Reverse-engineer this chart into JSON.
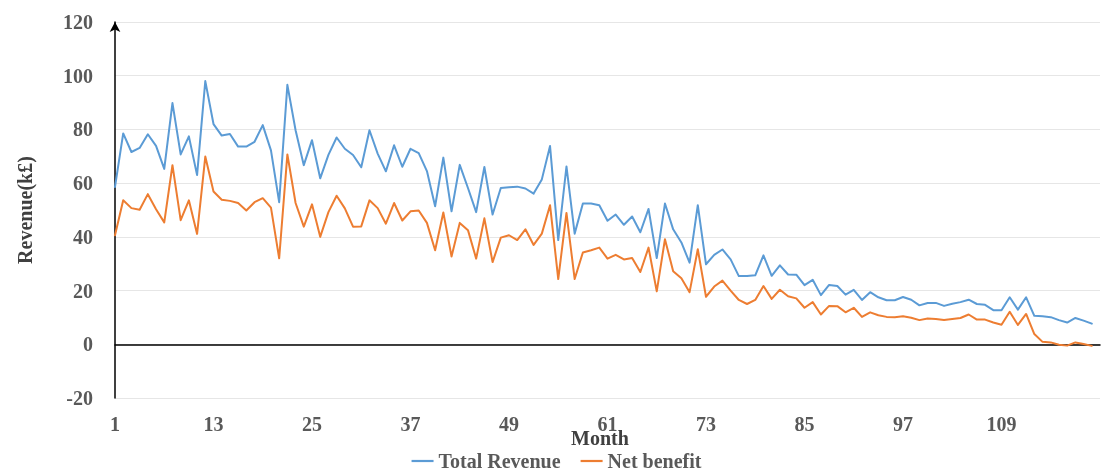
{
  "chart_data": {
    "type": "line",
    "xlabel": "Month",
    "ylabel": "Revenue(k£)",
    "x": [
      1,
      2,
      3,
      4,
      5,
      6,
      7,
      8,
      9,
      10,
      11,
      12,
      13,
      14,
      15,
      16,
      17,
      18,
      19,
      20,
      21,
      22,
      23,
      24,
      25,
      26,
      27,
      28,
      29,
      30,
      31,
      32,
      33,
      34,
      35,
      36,
      37,
      38,
      39,
      40,
      41,
      42,
      43,
      44,
      45,
      46,
      47,
      48,
      49,
      50,
      51,
      52,
      53,
      54,
      55,
      56,
      57,
      58,
      59,
      60,
      61,
      62,
      63,
      64,
      65,
      66,
      67,
      68,
      69,
      70,
      71,
      72,
      73,
      74,
      75,
      76,
      77,
      78,
      79,
      80,
      81,
      82,
      83,
      84,
      85,
      86,
      87,
      88,
      89,
      90,
      91,
      92,
      93,
      94,
      95,
      96,
      97,
      98,
      99,
      100,
      101,
      102,
      103,
      104,
      105,
      106,
      107,
      108,
      109,
      110,
      111,
      112,
      113,
      114,
      115,
      116,
      117,
      118,
      119,
      120
    ],
    "xlim": [
      1,
      121
    ],
    "xticks": [
      1,
      13,
      25,
      37,
      49,
      61,
      73,
      85,
      97,
      109
    ],
    "ylim": [
      -20,
      120
    ],
    "yticks": [
      -20,
      0,
      20,
      40,
      60,
      80,
      100,
      120
    ],
    "grid": "y",
    "legend": "bottom",
    "marker": "none",
    "line_style": "solid",
    "series": [
      {
        "name": "Total Revenue",
        "color": "#5b9bd5",
        "values": [
          58.6,
          78.5,
          71.6,
          73.1,
          78.2,
          73.9,
          65.3,
          89.8,
          70.7,
          77.4,
          63.0,
          98.0,
          82.0,
          77.7,
          78.3,
          73.6,
          73.6,
          75.4,
          81.6,
          72.2,
          52.9,
          96.6,
          79.7,
          66.7,
          76.0,
          61.8,
          70.5,
          77.0,
          72.8,
          70.5,
          65.9,
          79.7,
          71.0,
          64.4,
          74.1,
          66.1,
          72.8,
          71.2,
          64.5,
          51.4,
          69.5,
          49.5,
          66.8,
          58.2,
          49.2,
          66.0,
          48.3,
          58.2,
          58.5,
          58.7,
          58.0,
          56.1,
          61.4,
          73.8,
          38.8,
          66.2,
          41.2,
          52.4,
          52.4,
          51.8,
          46.0,
          48.3,
          44.5,
          47.6,
          41.7,
          50.4,
          32.1,
          52.4,
          42.8,
          37.9,
          30.4,
          51.8,
          29.8,
          33.3,
          35.3,
          31.6,
          25.4,
          25.4,
          25.7,
          33.1,
          25.5,
          29.4,
          26.0,
          25.9,
          22.0,
          24.0,
          18.3,
          22.1,
          21.7,
          18.5,
          20.3,
          16.5,
          19.4,
          17.5,
          16.4,
          16.4,
          17.6,
          16.6,
          14.5,
          15.4,
          15.4,
          14.3,
          15.1,
          15.7,
          16.6,
          15.0,
          14.7,
          12.7,
          12.7,
          17.5,
          12.9,
          17.5,
          10.6,
          10.4,
          10.1,
          9.0,
          8.1,
          9.8,
          8.8,
          7.7
        ]
      },
      {
        "name": "Net benefit",
        "color": "#ed7d31",
        "values": [
          40.6,
          53.6,
          50.7,
          50.1,
          55.9,
          50.3,
          45.4,
          66.7,
          46.2,
          53.6,
          41.1,
          69.9,
          56.9,
          53.8,
          53.4,
          52.6,
          49.8,
          52.9,
          54.4,
          50.9,
          32.0,
          70.7,
          52.6,
          43.8,
          52.1,
          40.0,
          49.2,
          55.3,
          50.6,
          43.8,
          43.9,
          53.6,
          50.7,
          44.9,
          52.6,
          46.1,
          49.5,
          49.8,
          45.2,
          35.0,
          49.1,
          32.7,
          45.2,
          42.5,
          31.9,
          46.9,
          30.6,
          39.7,
          40.6,
          38.8,
          42.8,
          37.0,
          41.2,
          51.8,
          24.3,
          48.9,
          24.3,
          34.2,
          35.0,
          36.0,
          31.9,
          33.3,
          31.6,
          32.1,
          26.9,
          36.0,
          19.7,
          39.1,
          27.2,
          24.6,
          19.4,
          35.4,
          17.7,
          21.5,
          23.7,
          20.0,
          16.5,
          15.0,
          16.5,
          21.7,
          16.9,
          20.3,
          17.9,
          17.1,
          13.6,
          15.7,
          11.1,
          14.3,
          14.2,
          11.9,
          13.6,
          10.2,
          11.9,
          10.8,
          10.2,
          10.1,
          10.4,
          9.9,
          9.0,
          9.6,
          9.4,
          9.0,
          9.4,
          9.8,
          11.1,
          9.2,
          9.2,
          8.1,
          7.3,
          12.1,
          7.2,
          11.3,
          3.8,
          0.9,
          0.7,
          -0.2,
          -0.5,
          0.7,
          0.1,
          -0.6
        ]
      }
    ]
  }
}
